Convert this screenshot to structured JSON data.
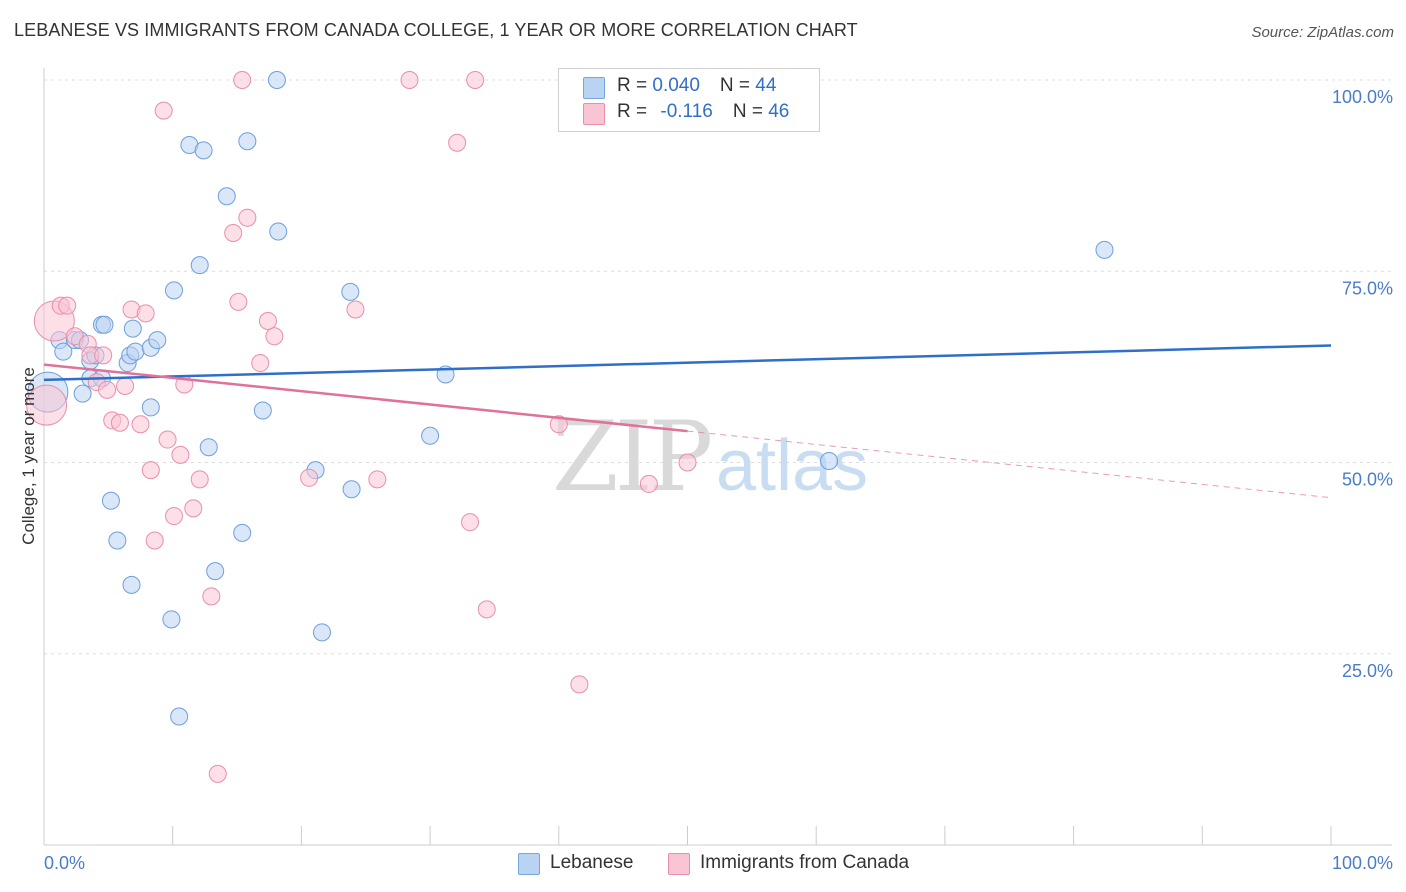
{
  "title": "LEBANESE VS IMMIGRANTS FROM CANADA COLLEGE, 1 YEAR OR MORE CORRELATION CHART",
  "source": "Source: ZipAtlas.com",
  "watermark": {
    "zip": "ZIP",
    "atlas": "atlas"
  },
  "legend": {
    "rows": [
      {
        "r_label": "R = ",
        "r_value": "0.040",
        "n_label": "N = ",
        "n_value": "44",
        "color": "#b9d3f2",
        "border": "#7aa6de"
      },
      {
        "r_label": "R = ",
        "r_value": "-0.116",
        "n_label": "N = ",
        "n_value": "46",
        "color": "#f9c4d3",
        "border": "#e88faa"
      }
    ]
  },
  "chart_data": {
    "type": "scatter",
    "title": "LEBANESE VS IMMIGRANTS FROM CANADA COLLEGE, 1 YEAR OR MORE CORRELATION CHART",
    "xlabel": "",
    "ylabel": "College, 1 year or more",
    "xlim": [
      0,
      100
    ],
    "ylim": [
      0,
      102
    ],
    "x_tick_labels": {
      "left": "0.0%",
      "right": "100.0%"
    },
    "y_ticks": [
      {
        "value": 25,
        "label": "25.0%"
      },
      {
        "value": 50,
        "label": "50.0%"
      },
      {
        "value": 75,
        "label": "75.0%"
      },
      {
        "value": 100,
        "label": "100.0%"
      }
    ],
    "grid": true,
    "series": [
      {
        "name": "Lebanese",
        "color": "#b9d3f2",
        "stroke": "#6f9fdc",
        "trend": {
          "x0": 0,
          "y0": 60.8,
          "x1": 100,
          "y1": 65.3,
          "color": "#2f6fc8",
          "dashed_from": null
        },
        "points": [
          [
            0.3,
            59.2
          ],
          [
            1.2,
            66
          ],
          [
            1.5,
            64.5
          ],
          [
            2.4,
            66
          ],
          [
            2.8,
            66
          ],
          [
            3,
            59
          ],
          [
            3.6,
            61
          ],
          [
            3.6,
            63.3
          ],
          [
            4,
            64
          ],
          [
            4.5,
            61
          ],
          [
            4.5,
            68
          ],
          [
            4.7,
            68
          ],
          [
            5.2,
            45
          ],
          [
            5.7,
            39.8
          ],
          [
            6.5,
            63
          ],
          [
            6.7,
            64
          ],
          [
            6.8,
            34
          ],
          [
            6.9,
            67.5
          ],
          [
            7.1,
            64.5
          ],
          [
            8.3,
            57.2
          ],
          [
            8.3,
            65
          ],
          [
            8.8,
            66
          ],
          [
            9.9,
            29.5
          ],
          [
            10.1,
            72.5
          ],
          [
            10.5,
            16.8
          ],
          [
            11.3,
            91.5
          ],
          [
            12.1,
            75.8
          ],
          [
            12.4,
            90.8
          ],
          [
            12.8,
            52
          ],
          [
            13.3,
            35.8
          ],
          [
            14.2,
            84.8
          ],
          [
            15.4,
            40.8
          ],
          [
            15.8,
            92
          ],
          [
            17,
            56.8
          ],
          [
            18.1,
            100
          ],
          [
            18.2,
            80.2
          ],
          [
            21.1,
            49
          ],
          [
            21.6,
            27.8
          ],
          [
            23.8,
            72.3
          ],
          [
            23.9,
            46.5
          ],
          [
            30,
            53.5
          ],
          [
            31.2,
            61.5
          ],
          [
            61,
            50.2
          ],
          [
            82.4,
            77.8
          ]
        ]
      },
      {
        "name": "Immigrants from Canada",
        "color": "#f9c4d3",
        "stroke": "#e88faa",
        "trend": {
          "x0": 0,
          "y0": 62.8,
          "x1": 100,
          "y1": 45.4,
          "color": "#e0719a",
          "dashed_from": 50
        },
        "points": [
          [
            0.2,
            57.5
          ],
          [
            0.8,
            68.5
          ],
          [
            1.3,
            70.5
          ],
          [
            1.8,
            70.5
          ],
          [
            2.4,
            66.5
          ],
          [
            3.4,
            65.5
          ],
          [
            3.6,
            64
          ],
          [
            4.1,
            60.5
          ],
          [
            4.6,
            64
          ],
          [
            4.9,
            59.5
          ],
          [
            5.3,
            55.5
          ],
          [
            5.9,
            55.2
          ],
          [
            6.3,
            60
          ],
          [
            6.8,
            70
          ],
          [
            7.5,
            55
          ],
          [
            7.9,
            69.5
          ],
          [
            8.3,
            49
          ],
          [
            8.6,
            39.8
          ],
          [
            9.3,
            96
          ],
          [
            9.6,
            53
          ],
          [
            10.1,
            43
          ],
          [
            10.6,
            51
          ],
          [
            10.9,
            60.2
          ],
          [
            11.6,
            44
          ],
          [
            12.1,
            47.8
          ],
          [
            13,
            32.5
          ],
          [
            13.5,
            9.3
          ],
          [
            14.7,
            80
          ],
          [
            15.1,
            71
          ],
          [
            15.4,
            100
          ],
          [
            15.8,
            82
          ],
          [
            16.8,
            63
          ],
          [
            17.4,
            68.5
          ],
          [
            17.9,
            66.5
          ],
          [
            20.6,
            48
          ],
          [
            24.2,
            70
          ],
          [
            25.9,
            47.8
          ],
          [
            28.4,
            100
          ],
          [
            32.1,
            91.8
          ],
          [
            33.1,
            42.2
          ],
          [
            33.5,
            100
          ],
          [
            34.4,
            30.8
          ],
          [
            40,
            55
          ],
          [
            41.6,
            21
          ],
          [
            47,
            47.2
          ],
          [
            50,
            50
          ]
        ]
      }
    ]
  },
  "bottom_legend": [
    {
      "label": "Lebanese",
      "color": "#b9d3f2",
      "border": "#7aa6de"
    },
    {
      "label": "Immigrants from Canada",
      "color": "#f9c4d3",
      "border": "#e88faa"
    }
  ]
}
